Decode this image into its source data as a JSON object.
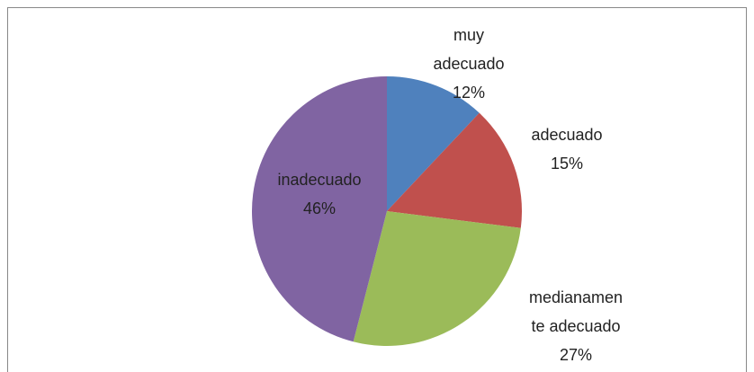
{
  "chart_data": {
    "type": "pie",
    "categories": [
      "muy adecuado",
      "adecuado",
      "medianamente adecuado",
      "inadecuado"
    ],
    "values": [
      12,
      15,
      27,
      46
    ],
    "value_labels": [
      "12%",
      "15%",
      "27%",
      "46%"
    ],
    "colors": [
      "#4f81bd",
      "#c0504d",
      "#9bbb59",
      "#8064a2"
    ]
  }
}
